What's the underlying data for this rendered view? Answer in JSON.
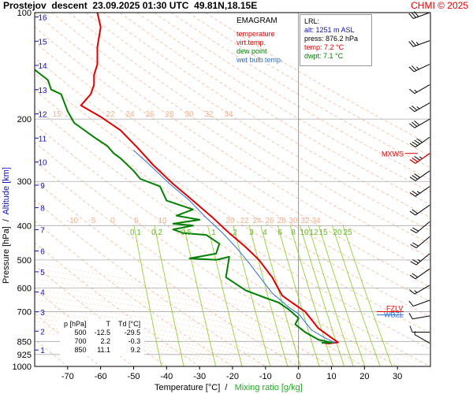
{
  "header": {
    "station": "Prostejov",
    "mode": "descent",
    "datetime": "23.09.2025 01:30 UTC",
    "location": "49.81N,18.15E",
    "credit": "CHMI © 2025"
  },
  "legend": {
    "title": "EMAGRAM",
    "items": [
      {
        "label": "temperature",
        "color": "#e00000"
      },
      {
        "label": "virt.temp.",
        "color": "#e00000"
      },
      {
        "label": "dew point",
        "color": "#008000"
      },
      {
        "label": "wet bulb temp.",
        "color": "#3070d0"
      }
    ]
  },
  "lrl": {
    "title": "LRL:",
    "alt": "alt: 1251 m ASL",
    "press": "press: 876.2 hPa",
    "temp": "temp: 7.2 °C",
    "dwpt": "dwpt: 7.1 °C"
  },
  "table": {
    "headers": [
      "p [hPa]",
      "T",
      "Td [°C]"
    ],
    "rows": [
      [
        "500",
        "-12.5",
        "-29.5"
      ],
      [
        "700",
        "2.2",
        "-0.3"
      ],
      [
        "850",
        "11.1",
        "9.2"
      ]
    ]
  },
  "markers": {
    "mxws": "MXWS",
    "fzlv": "FZLV",
    "wbzl": "WBZL"
  },
  "chart_data": {
    "type": "line",
    "xlabel": "Temperature [°C]",
    "xlabel2": "Mixing ratio [g/kg]",
    "ylabel": "Pressure [hPa]",
    "ylabel2": "Altitude [km]",
    "xlim": [
      -80,
      40
    ],
    "ylim": [
      1000,
      100
    ],
    "x_ticks": [
      -70,
      -60,
      -50,
      -40,
      -30,
      -20,
      -10,
      0,
      10,
      20,
      30
    ],
    "p_ticks": [
      100,
      200,
      300,
      400,
      500,
      600,
      700,
      850,
      925,
      1000
    ],
    "km_ticks": [
      1,
      2,
      3,
      4,
      5,
      6,
      7,
      8,
      9,
      10,
      11,
      12,
      13,
      14,
      15,
      16
    ],
    "dry_adiabat_labels": [
      15,
      22,
      24,
      26,
      28,
      30,
      32,
      34
    ],
    "theta_e_labels": [
      -10,
      -5,
      0,
      5,
      10,
      20,
      22,
      24,
      26,
      28,
      30,
      32,
      34
    ],
    "mixing_ratio_labels": [
      "0.1",
      "0.2",
      "0.5",
      "1",
      "2",
      "3",
      "4",
      "6",
      "8",
      "10",
      "12",
      "15",
      "20",
      "25"
    ],
    "colors": {
      "temperature": "#e00000",
      "dewpoint": "#008000",
      "wetbulb": "#3070d0",
      "mixing": "#88cc22",
      "adiabat": "#f4b08c",
      "wind": "#000000",
      "grid": "#aaaaaa"
    },
    "series": [
      {
        "name": "temperature",
        "points": [
          [
            8,
            858
          ],
          [
            9,
            862
          ],
          [
            12,
            855
          ],
          [
            10,
            830
          ],
          [
            6,
            780
          ],
          [
            2,
            700
          ],
          [
            -2,
            660
          ],
          [
            -5,
            630
          ],
          [
            -8,
            560
          ],
          [
            -12,
            500
          ],
          [
            -16,
            460
          ],
          [
            -21,
            420
          ],
          [
            -26,
            380
          ],
          [
            -32,
            340
          ],
          [
            -38,
            305
          ],
          [
            -44,
            270
          ],
          [
            -49,
            240
          ],
          [
            -54,
            215
          ],
          [
            -60,
            197
          ],
          [
            -66,
            183
          ],
          [
            -63,
            170
          ],
          [
            -62,
            160
          ],
          [
            -62,
            150
          ],
          [
            -61,
            140
          ],
          [
            -61,
            125
          ],
          [
            -60,
            110
          ],
          [
            -61,
            100
          ]
        ]
      },
      {
        "name": "wet bulb temp.",
        "points": [
          [
            8,
            860
          ],
          [
            11,
            856
          ],
          [
            8,
            830
          ],
          [
            4,
            790
          ],
          [
            0,
            710
          ],
          [
            -3,
            680
          ],
          [
            -8,
            620
          ],
          [
            -13,
            540
          ],
          [
            -15,
            510
          ],
          [
            -19,
            460
          ],
          [
            -23,
            420
          ],
          [
            -28,
            380
          ],
          [
            -33,
            340
          ],
          [
            -39,
            305
          ],
          [
            -45,
            270
          ],
          [
            -50,
            245
          ]
        ]
      },
      {
        "name": "dew point",
        "points": [
          [
            7,
            858
          ],
          [
            10,
            856
          ],
          [
            6,
            840
          ],
          [
            4,
            820
          ],
          [
            2,
            800
          ],
          [
            -1,
            760
          ],
          [
            0,
            730
          ],
          [
            -3,
            690
          ],
          [
            -6,
            660
          ],
          [
            -10,
            640
          ],
          [
            -16,
            610
          ],
          [
            -22,
            560
          ],
          [
            -21,
            490
          ],
          [
            -25,
            500
          ],
          [
            -33,
            495
          ],
          [
            -25,
            480
          ],
          [
            -24,
            450
          ],
          [
            -28,
            425
          ],
          [
            -35,
            420
          ],
          [
            -38,
            410
          ],
          [
            -32,
            400
          ],
          [
            -38,
            395
          ],
          [
            -30,
            385
          ],
          [
            -37,
            375
          ],
          [
            -32,
            360
          ],
          [
            -40,
            340
          ],
          [
            -42,
            310
          ],
          [
            -48,
            295
          ],
          [
            -50,
            280
          ],
          [
            -54,
            258
          ],
          [
            -56,
            250
          ],
          [
            -58,
            238
          ],
          [
            -62,
            225
          ],
          [
            -68,
            205
          ],
          [
            -70,
            190
          ],
          [
            -72,
            170
          ],
          [
            -75,
            165
          ],
          [
            -76,
            155
          ],
          [
            -80,
            145
          ]
        ]
      }
    ],
    "wind_barbs": [
      {
        "p": 100,
        "dir": 250,
        "spd": 30
      },
      {
        "p": 120,
        "dir": 250,
        "spd": 25
      },
      {
        "p": 140,
        "dir": 245,
        "spd": 25
      },
      {
        "p": 160,
        "dir": 240,
        "spd": 15
      },
      {
        "p": 180,
        "dir": 240,
        "spd": 25
      },
      {
        "p": 200,
        "dir": 240,
        "spd": 30
      },
      {
        "p": 225,
        "dir": 235,
        "spd": 40
      },
      {
        "p": 250,
        "dir": 235,
        "spd": 35
      },
      {
        "p": 280,
        "dir": 235,
        "spd": 30
      },
      {
        "p": 310,
        "dir": 235,
        "spd": 25
      },
      {
        "p": 350,
        "dir": 235,
        "spd": 20
      },
      {
        "p": 390,
        "dir": 230,
        "spd": 20
      },
      {
        "p": 430,
        "dir": 230,
        "spd": 20
      },
      {
        "p": 480,
        "dir": 230,
        "spd": 25
      },
      {
        "p": 530,
        "dir": 235,
        "spd": 20
      },
      {
        "p": 590,
        "dir": 240,
        "spd": 15
      },
      {
        "p": 650,
        "dir": 250,
        "spd": 10
      },
      {
        "p": 720,
        "dir": 260,
        "spd": 10
      },
      {
        "p": 800,
        "dir": 270,
        "spd": 10
      },
      {
        "p": 860,
        "dir": 300,
        "spd": 5
      }
    ],
    "mxws_p": 250,
    "fzlv_p": 700,
    "wbzl_p": 715
  }
}
